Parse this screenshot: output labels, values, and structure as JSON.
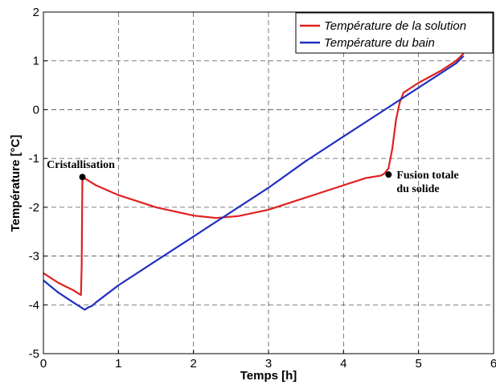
{
  "chart_data": {
    "type": "line",
    "xlabel": "Temps [h]",
    "ylabel": "Température [°C]",
    "xlim": [
      0,
      6
    ],
    "ylim": [
      -5,
      2
    ],
    "xticks": [
      0,
      1,
      2,
      3,
      4,
      5,
      6
    ],
    "yticks": [
      -5,
      -4,
      -3,
      -2,
      -1,
      0,
      1,
      2
    ],
    "x_tick_labels": [
      "0",
      "1",
      "2",
      "3",
      "4",
      "5",
      "6"
    ],
    "y_tick_labels": [
      "-5",
      "-4",
      "-3",
      "-2",
      "-1",
      "0",
      "1",
      "2"
    ],
    "grid": true,
    "legend_position": "top-right",
    "series": [
      {
        "name": "Température de la solution",
        "color": "#e02020",
        "x": [
          0,
          0.2,
          0.4,
          0.5,
          0.51,
          0.52,
          0.7,
          1.0,
          1.5,
          2.0,
          2.3,
          2.6,
          3.0,
          3.5,
          4.0,
          4.3,
          4.5,
          4.55,
          4.6,
          4.65,
          4.7,
          4.75,
          4.8,
          5.0,
          5.3,
          5.5,
          5.6
        ],
        "y": [
          -3.35,
          -3.55,
          -3.7,
          -3.8,
          -3.2,
          -1.38,
          -1.55,
          -1.75,
          -2.0,
          -2.17,
          -2.22,
          -2.18,
          -2.05,
          -1.8,
          -1.55,
          -1.4,
          -1.35,
          -1.3,
          -1.2,
          -0.8,
          -0.2,
          0.15,
          0.35,
          0.55,
          0.8,
          1.0,
          1.15
        ]
      },
      {
        "name": "Température du bain",
        "color": "#2030c0",
        "x": [
          0,
          0.2,
          0.4,
          0.5,
          0.55,
          0.6,
          0.65,
          0.7,
          1.0,
          1.5,
          2.0,
          2.5,
          3.0,
          3.5,
          4.0,
          4.5,
          5.0,
          5.5,
          5.6
        ],
        "y": [
          -3.5,
          -3.75,
          -3.95,
          -4.05,
          -4.1,
          -4.05,
          -4.02,
          -3.95,
          -3.6,
          -3.1,
          -2.6,
          -2.1,
          -1.6,
          -1.05,
          -0.55,
          -0.05,
          0.45,
          0.95,
          1.1
        ]
      }
    ],
    "annotations": [
      {
        "x": 0.52,
        "y": -1.38,
        "lines": [
          "Cristallisation"
        ]
      },
      {
        "x": 4.6,
        "y": -1.33,
        "lines": [
          "Fusion totale",
          "du solide"
        ]
      }
    ]
  }
}
